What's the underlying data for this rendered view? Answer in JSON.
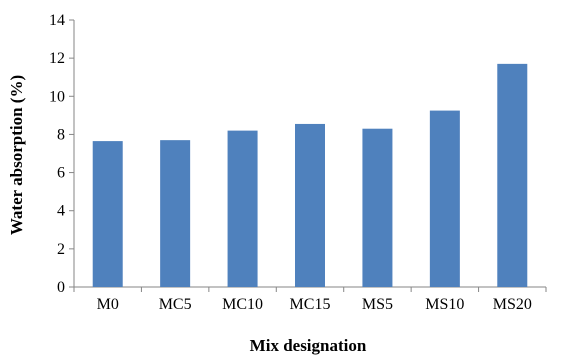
{
  "chart_data": {
    "type": "bar",
    "categories": [
      "M0",
      "MC5",
      "MC10",
      "MC15",
      "MS5",
      "MS10",
      "MS20"
    ],
    "values": [
      7.65,
      7.7,
      8.2,
      8.55,
      8.3,
      9.25,
      11.7
    ],
    "xlabel": "Mix designation",
    "ylabel": "Water absorption (%)",
    "ylim": [
      0,
      14
    ],
    "yticks": [
      0,
      2,
      4,
      6,
      8,
      10,
      12,
      14
    ],
    "grid": false,
    "legend": "none",
    "bar_color": "#4f81bd",
    "axis_color": "#868686"
  }
}
